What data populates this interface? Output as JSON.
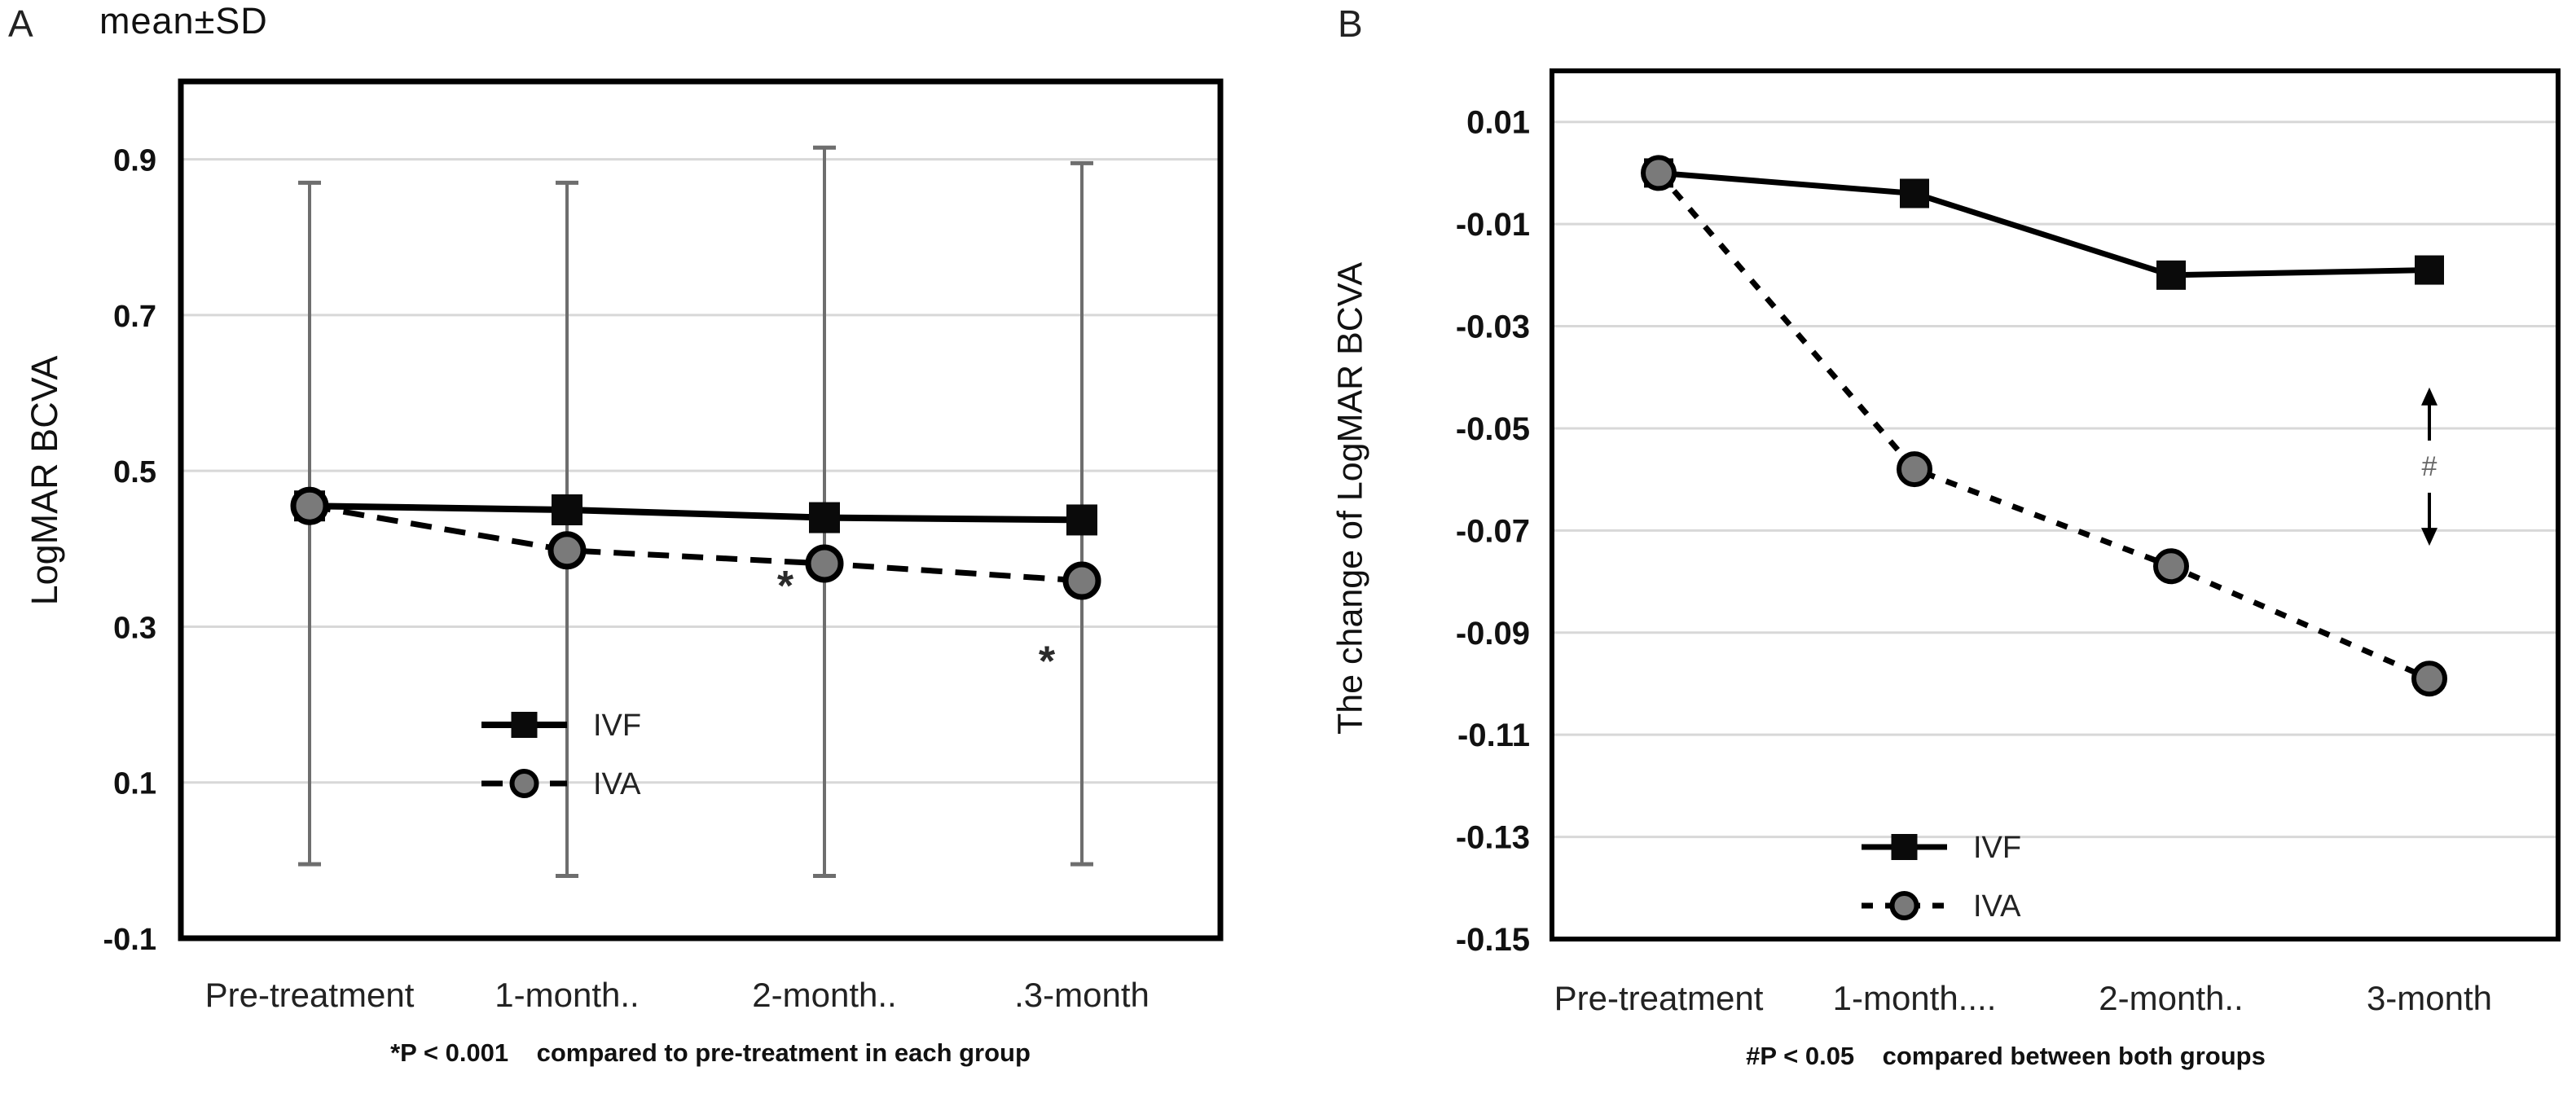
{
  "page": {
    "background": "#ffffff"
  },
  "colors": {
    "line": "#000000",
    "marker_fill_circle": "#7a7a7a",
    "marker_fill_square": "#0a0a0a",
    "grid": "#d8d8d8",
    "error_bar": "#6e6e6e",
    "text": "#111111",
    "annotation": "#2b2b2b",
    "hash": "#666666"
  },
  "chart_data": [
    {
      "type": "line",
      "panel_label": "A",
      "title": "mean±SD",
      "ylabel": "LogMAR BCVA",
      "footnote": "*P < 0.001    compared to pre-treatment in each group",
      "categories": [
        "Pre-treatment",
        "1-month..",
        "2-month..",
        ".3-month"
      ],
      "series": [
        {
          "name": "IVF",
          "line_style": "solid",
          "marker": "square",
          "values": [
            0.455,
            0.45,
            0.44,
            0.437
          ]
        },
        {
          "name": "IVA",
          "line_style": "dashed",
          "marker": "circle",
          "values": [
            0.455,
            0.398,
            0.381,
            0.359
          ]
        }
      ],
      "error_bars": [
        {
          "low": -0.005,
          "high": 0.87
        },
        {
          "low": -0.02,
          "high": 0.87
        },
        {
          "low": -0.02,
          "high": 0.915
        },
        {
          "low": -0.005,
          "high": 0.895
        }
      ],
      "annotations": [
        {
          "symbol": "*",
          "category_index": 2,
          "dx": -48,
          "value": 0.353
        },
        {
          "symbol": "*",
          "category_index": 3,
          "dx": -43,
          "value": 0.256
        }
      ],
      "yticks": [
        {
          "value": 0.9,
          "label": "0.9"
        },
        {
          "value": 0.7,
          "label": "0.7"
        },
        {
          "value": 0.5,
          "label": "0.5"
        },
        {
          "value": 0.3,
          "label": "0.3"
        },
        {
          "value": 0.1,
          "label": "0.1"
        },
        {
          "value": -0.1,
          "label": "-0.1"
        }
      ],
      "ylim": [
        -0.1,
        1.0
      ],
      "grid": true,
      "legend_position": "inside-bottom-left",
      "legend_entries": [
        "IVF",
        "IVA"
      ]
    },
    {
      "type": "line",
      "panel_label": "B",
      "title": "",
      "ylabel": "The change of LogMAR BCVA",
      "footnote": "#P < 0.05    compared between both groups",
      "categories": [
        "Pre-treatment",
        "1-month....",
        "2-month..",
        "3-month"
      ],
      "series": [
        {
          "name": "IVF",
          "line_style": "solid",
          "marker": "square",
          "values": [
            0.0,
            -0.004,
            -0.02,
            -0.019
          ]
        },
        {
          "name": "IVA",
          "line_style": "dashed",
          "marker": "circle",
          "values": [
            0.0,
            -0.058,
            -0.077,
            -0.099
          ]
        }
      ],
      "error_bars": [],
      "annotations": [
        {
          "symbol": "#",
          "style": "double-arrow",
          "category_index": 3,
          "from": -0.042,
          "to": -0.073
        }
      ],
      "yticks": [
        {
          "value": 0.01,
          "label": "0.01"
        },
        {
          "value": -0.01,
          "label": "-0.01"
        },
        {
          "value": -0.03,
          "label": "-0.03"
        },
        {
          "value": -0.05,
          "label": "-0.05"
        },
        {
          "value": -0.07,
          "label": "-0.07"
        },
        {
          "value": -0.09,
          "label": "-0.09"
        },
        {
          "value": -0.11,
          "label": "-0.11"
        },
        {
          "value": -0.13,
          "label": "-0.13"
        },
        {
          "value": -0.15,
          "label": "-0.15"
        }
      ],
      "ylim": [
        -0.15,
        0.02
      ],
      "grid": true,
      "legend_position": "inside-bottom-left",
      "legend_entries": [
        "IVF",
        "IVA"
      ]
    }
  ]
}
